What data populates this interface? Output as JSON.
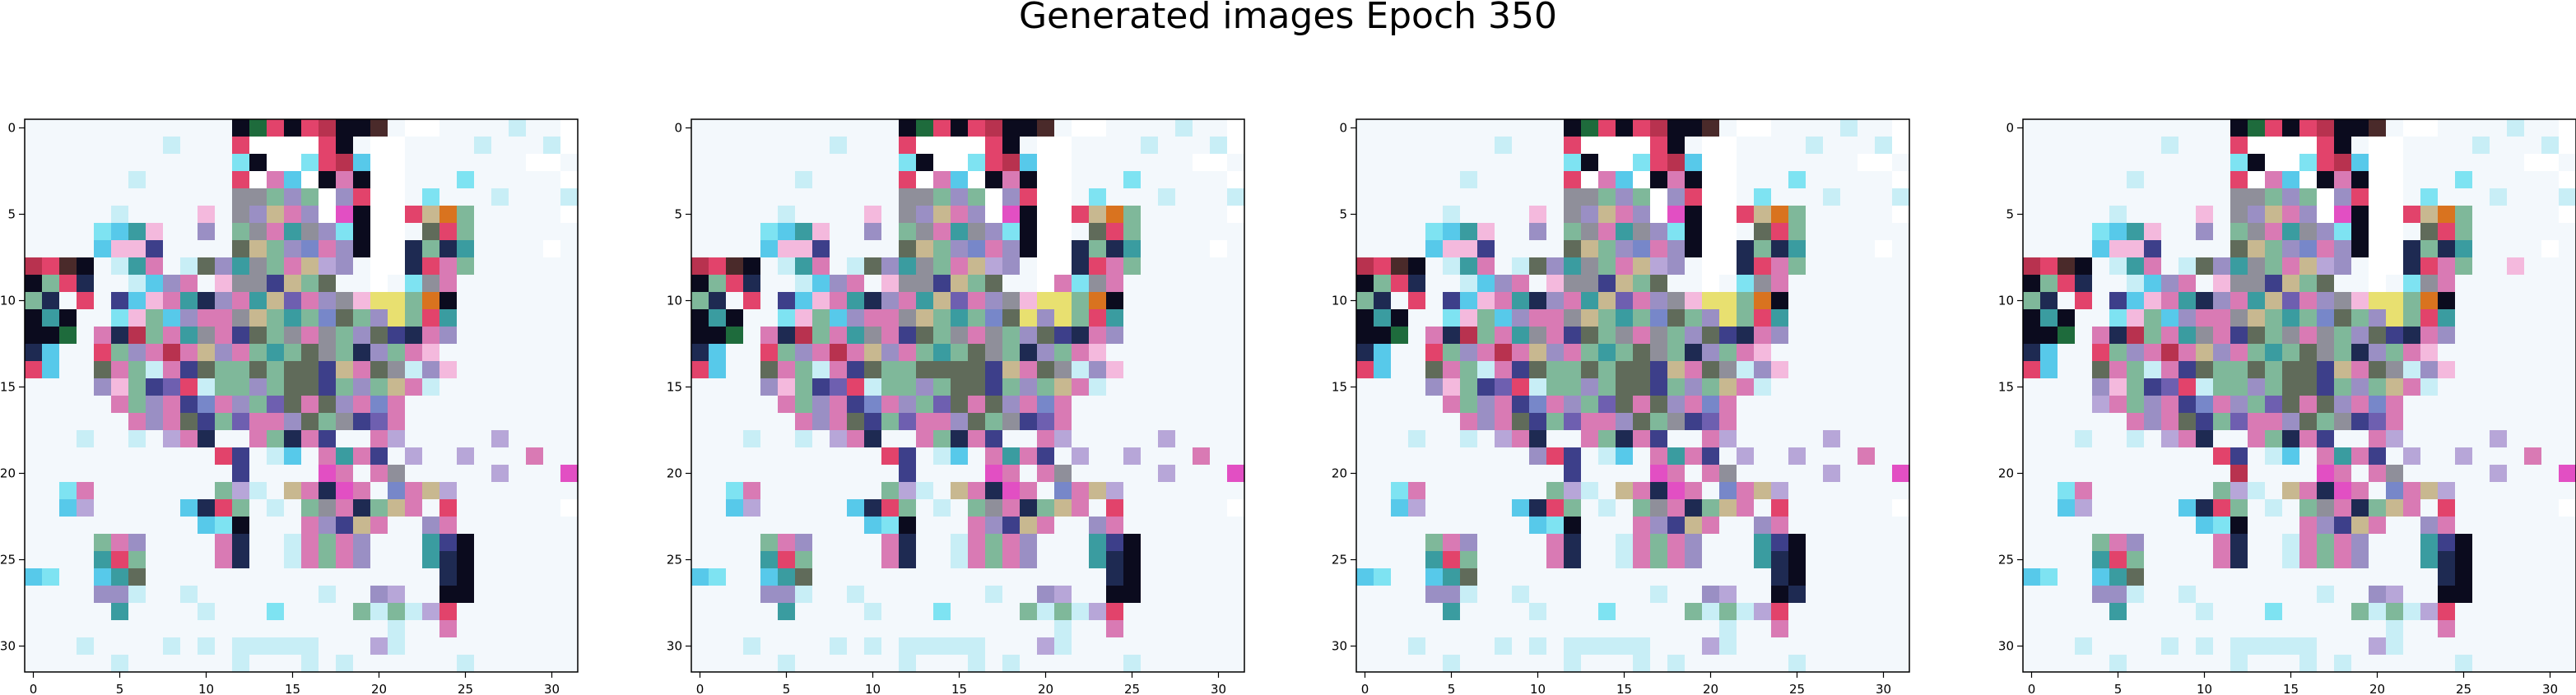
{
  "figure": {
    "title": "Generated images Epoch 350"
  },
  "chart_data": {
    "type": "heatmap",
    "panel_count": 4,
    "grid_size": 32,
    "x_ticks": [
      0,
      5,
      10,
      15,
      20,
      25,
      30
    ],
    "y_ticks": [
      0,
      5,
      10,
      15,
      20,
      25,
      30
    ],
    "xlim": [
      -0.5,
      31.5
    ],
    "ylim": [
      31.5,
      -0.5
    ],
    "palette": {
      "W": "#ffffff",
      "w": "#f3f8fc",
      "c": "#c8eef6",
      "C": "#7ee3f2",
      "b": "#57c9ea",
      "p": "#f4b9dd",
      "P": "#d97ab4",
      "m": "#e24fc3",
      "r": "#e2436b",
      "R": "#b8324f",
      "k": "#0b0b1e",
      "n": "#1e2a52",
      "N": "#3d3f8a",
      "g": "#1e6b3c",
      "G": "#7fb89a",
      "t": "#3a9ca0",
      "l": "#9a8fc4",
      "L": "#b7a6d8",
      "y": "#e8e070",
      "o": "#d9731f",
      "e": "#8f8f9a",
      "s": "#c8b890",
      "u": "#7787c9",
      "v": "#6e5fb0",
      "x": "#606b5a",
      "d": "#4a2a2a",
      "h": "#d6d9e8"
    },
    "rows": [
      "wwwwwwwwwwwwkgrkrRkkdwWWwwwwcwwW",
      "wwwwwwwwcwwwrWWWWrkwWWwwwwcwwwcW",
      "wwwwwwwwwwwwCkWWCrRbWWwwwwwwwWWw",
      "wwwwwwcwwwwwrWPbWkPkWWwwwCwwwwwW",
      "wwwwwwwwwwwweeGlGWlrWWwCwwwcwwwc",
      "wwwwwcwwwwpwelsPlWmkWWrsoGwwwwwW",
      "wwwwCbtpwwlwGePtelCkWWwxrGwwwwww",
      "wwwwbppNwwwwxsGluPlkWWnGntwwwwWw",
      "RrdkwctPwcxlteGPsLlwWWnrPGwwwwww",
      "kGrnwwcblPwpeeNsGxwwWwCePwwwwwww",
      "GnwrwNbpPtnlPtsvPlepyyGokwwwwwww",
      "ktkwwCpGblPPesGtGuxGlyGrtwwwwwww",
      "kkgwPnRGPtePNxGePeGlxNnPlwwwwwww",
      "nbwwrGlPRPslPGtGxeGnlGPpwwwwwwww",
      "rbwwxPGcPNxGGxGxxNsPxeclpwwwwwww",
      "wwwwlpGNvrcGGlGxxNGlGsPcwwwwwwww",
      "wwwwwPGlPNuPlGvxPxlPuPwwwwwwwwww",
      "wwwwwwPlPxNGvPPlxGeNvPwwwwwwwwww",
      "wwwcwwcwLPnwwPGnPNwwPLwwwwwLwwww",
      "wwwwwwwwwwwrNwcbwPtPNwLwwLwwwPww",
      "wwwwwwwwwwwwNwwwwmPwPewwwwwLwwwm",
      "wwCPwwwwwwwGLcwsPnmPwuPsLwwwwwww",
      "wwbLwwwwwbnrGwcwGePnGsPwrwwwwwwW",
      "wwwwwwwwwwbCkwwwPlNsPwwlPwwwwwww",
      "wwwwGPlwwwwPnwwcPGPlwwwtNkwwwwww",
      "wwwwtrGwwwwPnwwcPGPlwwwtnkwwwwww",
      "bCwwbtxwwwwwwwwwwwwwwwwwnkwwwwww",
      "wwwwllcwwcwwwwwwwcwwlLwwkkwwwwww",
      "wwwwwtwwwwcwwwCwwwwGcGcLrwwwwwww",
      "wwwwwwwwwwwwwwwwwwwwwcwwPwwwwwww",
      "wwwcwwwwcwcwcccccwwwLcwwwwwwwwww",
      "wwwwwcwwwwwwcwwwcwcwwwwwwcwwwwww"
    ],
    "panel_variations": [
      [],
      [
        [
          11,
          19,
          "y"
        ],
        [
          9,
          21,
          "P"
        ],
        [
          14,
          14,
          "x"
        ]
      ],
      [
        [
          19,
          10,
          "l"
        ],
        [
          27,
          25,
          "n"
        ]
      ],
      [
        [
          20,
          12,
          "R"
        ],
        [
          8,
          28,
          "p"
        ],
        [
          16,
          4,
          "L"
        ]
      ]
    ]
  }
}
